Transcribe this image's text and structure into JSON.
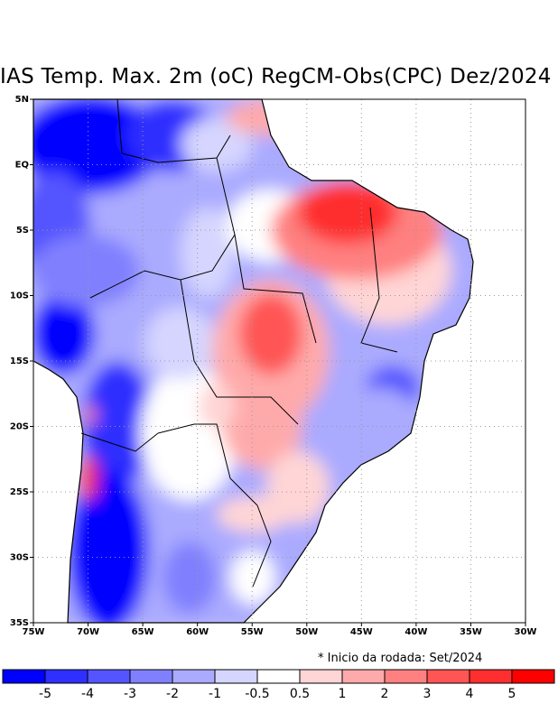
{
  "title": "IAS Temp. Max. 2m (oC) RegCM-Obs(CPC) Dez/2024",
  "note": "* Inicio da rodada: Set/2024",
  "map": {
    "lon_range": [
      -75,
      -30
    ],
    "lat_range": [
      -35,
      5
    ],
    "x_ticks": [
      "75W",
      "70W",
      "65W",
      "60W",
      "55W",
      "50W",
      "45W",
      "40W",
      "35W",
      "30W"
    ],
    "y_ticks": [
      "5N",
      "EQ",
      "5S",
      "10S",
      "15S",
      "20S",
      "25S",
      "30S",
      "35S"
    ],
    "variable": "2m maximum temperature anomaly (oC)",
    "features": {
      "negative_west_amazon_andes": "strong cold bias (-3 to -5)",
      "positive_northeast_central": "warm bias (+1 to +4)"
    }
  },
  "colorbar": {
    "labels": [
      "-5",
      "-4",
      "-3",
      "-2",
      "-1",
      "-0.5",
      "0.5",
      "1",
      "2",
      "3",
      "4",
      "5"
    ],
    "colors": [
      "#0000ff",
      "#2f2fff",
      "#5555ff",
      "#8080ff",
      "#aaaaff",
      "#d5d5ff",
      "#ffffff",
      "#ffd5d5",
      "#ffaaaa",
      "#ff8080",
      "#ff5555",
      "#ff2f2f",
      "#ff0000"
    ]
  }
}
